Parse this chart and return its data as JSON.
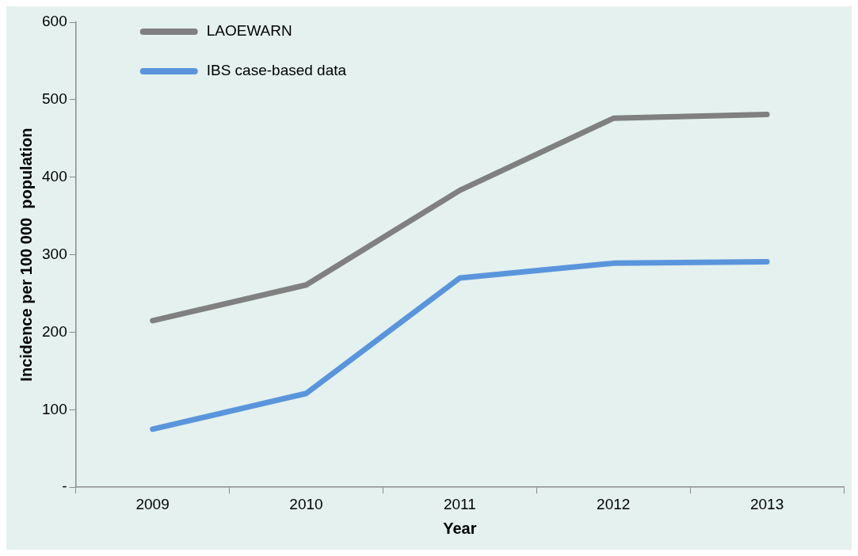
{
  "chart_data": {
    "type": "line",
    "xlabel": "Year",
    "ylabel": "Incidence per 100 000  population",
    "categories": [
      "2009",
      "2010",
      "2011",
      "2012",
      "2013"
    ],
    "series": [
      {
        "name": "LAOEWARN",
        "color": "#808080",
        "values": [
          215,
          261,
          383,
          476,
          481
        ]
      },
      {
        "name": "IBS case-based data",
        "color": "#5a95dc",
        "values": [
          75,
          121,
          270,
          289,
          291
        ]
      }
    ],
    "ylim": [
      0,
      600
    ],
    "yticks": [
      {
        "value": 0,
        "label": "-"
      },
      100,
      200,
      300,
      400,
      500,
      600
    ],
    "grid": false,
    "legend": "top left",
    "marker": "none",
    "line_style": "solid"
  }
}
